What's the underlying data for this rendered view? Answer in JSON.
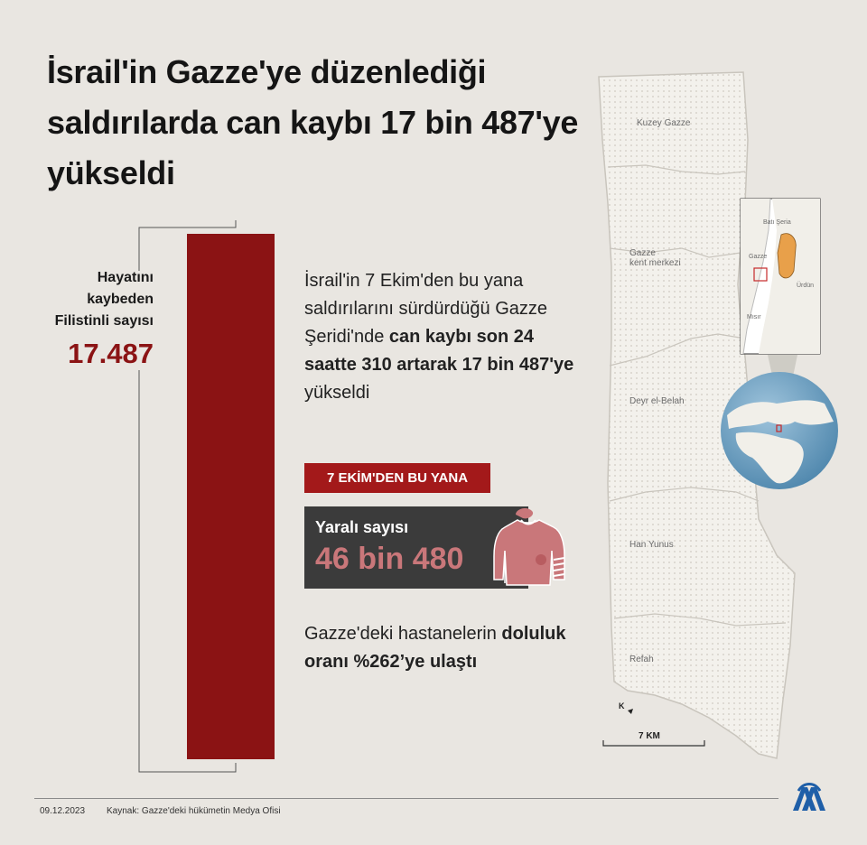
{
  "title": "İsrail'in Gazze'ye düzenlediği saldırılarda can kaybı 17 bin 487'ye yükseldi",
  "deaths": {
    "label": "Hayatını kaybeden Filistinli sayısı",
    "value": "17.487"
  },
  "main_text": {
    "part1": "İsrail'in 7 Ekim'den bu yana saldırılarını sürdürdüğü Gazze Şeridi'nde ",
    "bold": "can kaybı son 24 saatte 310 artarak 17 bin 487'ye",
    "part2": " yükseldi"
  },
  "since_badge": "7 EKİM'DEN  BU YANA",
  "injured": {
    "label": "Yaralı sayısı",
    "value": "46 bin 480"
  },
  "hospital": {
    "part1": "Gazze'deki hastanelerin ",
    "bold": "doluluk oranı %262’ye ulaştı"
  },
  "map": {
    "regions": [
      "Kuzey Gazze",
      "Gazze kent merkezi",
      "Deyr el-Belah",
      "Han Yunus",
      "Refah"
    ],
    "gaza_city_line1": "Gazze",
    "gaza_city_line2": "kent merkezi",
    "inset_labels": [
      "Batı Şeria",
      "Gazze",
      "Ürdün",
      "Mısır"
    ],
    "scale": "7 KM",
    "north_mark": "K"
  },
  "colors": {
    "background": "#e9e6e1",
    "accent_red": "#8b1314",
    "badge_red": "#a3191a",
    "dark_box": "#3b3b3b",
    "injured_value": "#c9777a",
    "map_land": "#f3f1ec",
    "west_bank": "#e8a04a",
    "logo_blue": "#1f5fa8"
  },
  "footer": {
    "date": "09.12.2023",
    "source": "Kaynak: Gazze'deki hükümetin Medya Ofisi"
  },
  "logo": "aa-logo-icon"
}
